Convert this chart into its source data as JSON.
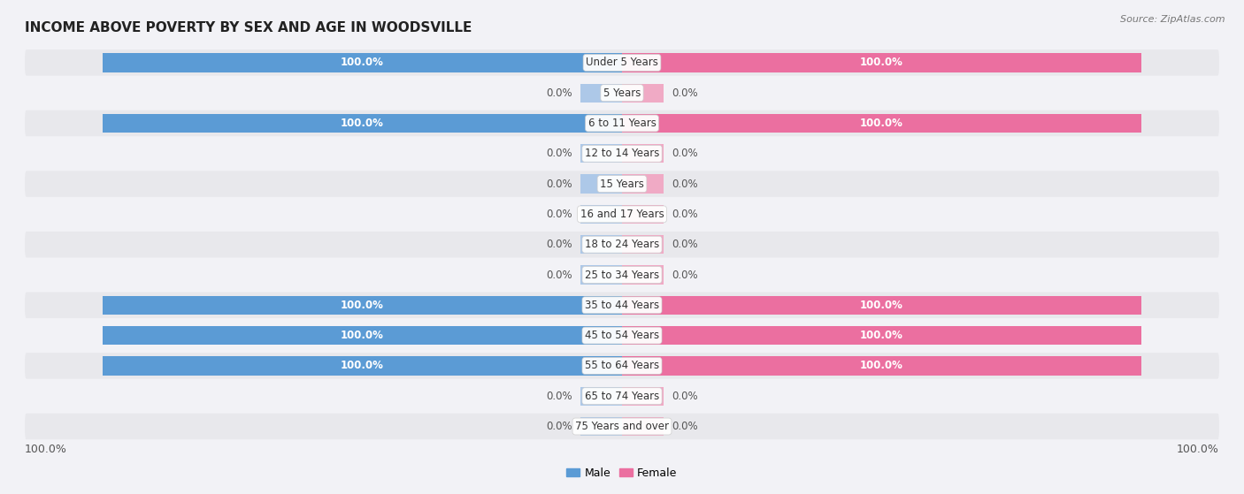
{
  "title": "INCOME ABOVE POVERTY BY SEX AND AGE IN WOODSVILLE",
  "source": "Source: ZipAtlas.com",
  "categories": [
    "Under 5 Years",
    "5 Years",
    "6 to 11 Years",
    "12 to 14 Years",
    "15 Years",
    "16 and 17 Years",
    "18 to 24 Years",
    "25 to 34 Years",
    "35 to 44 Years",
    "45 to 54 Years",
    "55 to 64 Years",
    "65 to 74 Years",
    "75 Years and over"
  ],
  "male_values": [
    100.0,
    0.0,
    100.0,
    0.0,
    0.0,
    0.0,
    0.0,
    0.0,
    100.0,
    100.0,
    100.0,
    0.0,
    0.0
  ],
  "female_values": [
    100.0,
    0.0,
    100.0,
    0.0,
    0.0,
    0.0,
    0.0,
    0.0,
    100.0,
    100.0,
    100.0,
    0.0,
    0.0
  ],
  "male_color": "#5b9bd5",
  "male_color_light": "#adc8e8",
  "female_color": "#eb6fa0",
  "female_color_light": "#f0aac5",
  "male_label": "Male",
  "female_label": "Female",
  "bar_height": 0.62,
  "row_bg_dark": "#e8e8ec",
  "row_bg_light": "#f2f2f6",
  "title_fontsize": 11,
  "label_fontsize": 8.5,
  "value_fontsize": 8.5,
  "tick_fontsize": 9,
  "max_value": 100,
  "stub_size": 8,
  "bottom_tick_label": "100.0%"
}
